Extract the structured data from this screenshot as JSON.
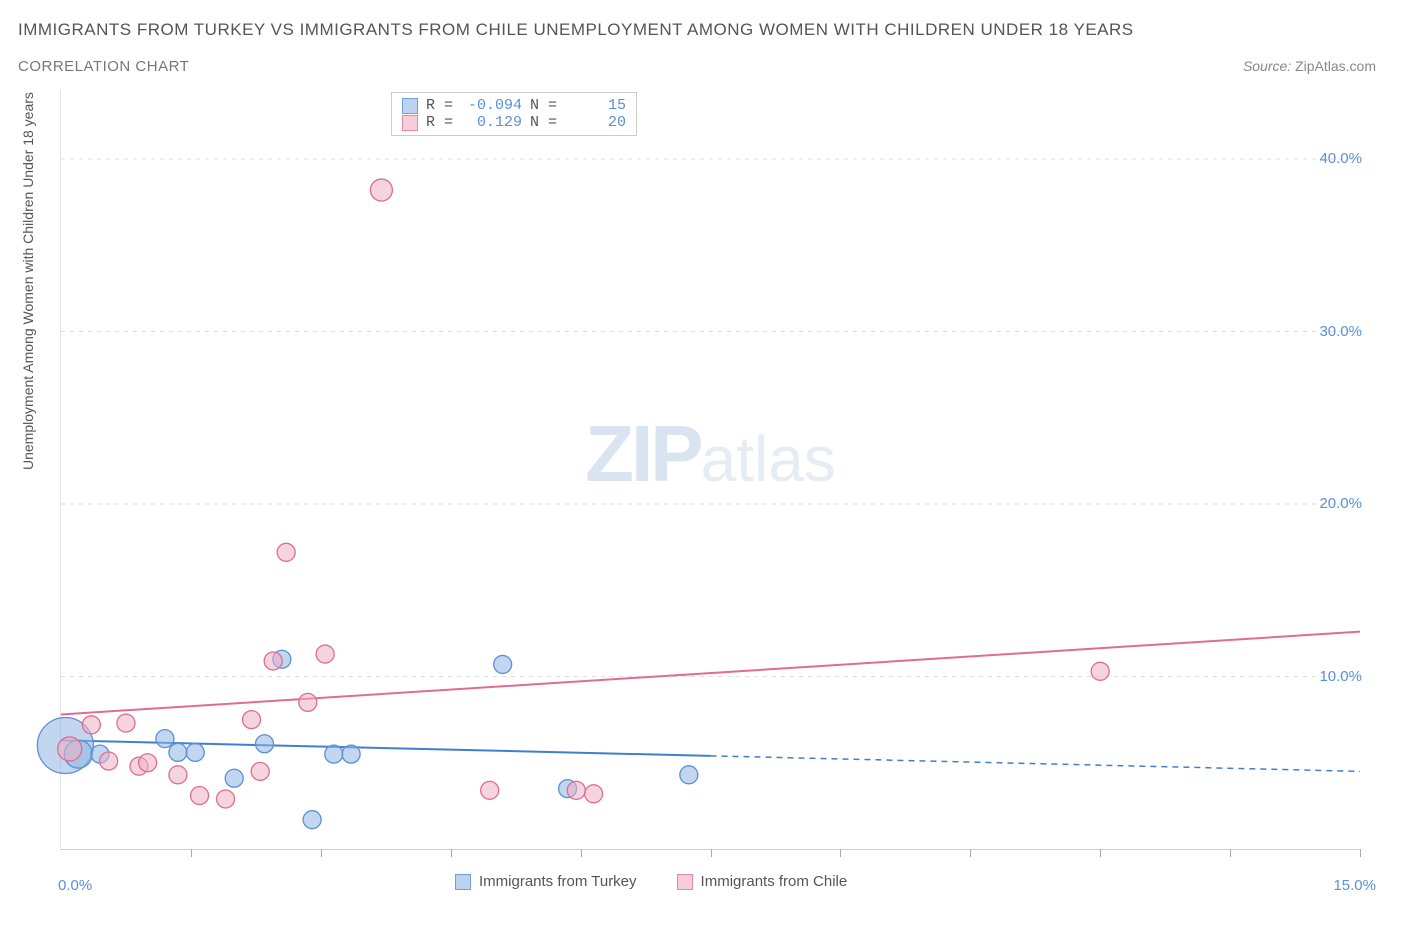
{
  "title": "IMMIGRANTS FROM TURKEY VS IMMIGRANTS FROM CHILE UNEMPLOYMENT AMONG WOMEN WITH CHILDREN UNDER 18 YEARS",
  "subtitle": "CORRELATION CHART",
  "source_prefix": "Source: ",
  "source": "ZipAtlas.com",
  "y_axis_label": "Unemployment Among Women with Children Under 18 years",
  "watermark": {
    "left": "ZIP",
    "right": "atlas"
  },
  "chart": {
    "type": "scatter",
    "background_color": "#ffffff",
    "grid_color": "#dddddd",
    "xlim": [
      0.0,
      15.0
    ],
    "ylim": [
      0.0,
      44.0
    ],
    "x_ticks_minor": [
      1.5,
      3.0,
      4.5,
      6.0,
      7.5,
      9.0,
      10.5,
      12.0,
      13.5,
      15.0
    ],
    "y_grid": [
      10.0,
      20.0,
      30.0,
      40.0
    ],
    "x_tick_labels": {
      "min": "0.0%",
      "max": "15.0%"
    },
    "y_tick_labels": [
      "10.0%",
      "20.0%",
      "30.0%",
      "40.0%"
    ],
    "legend_top": [
      {
        "swatch_fill": "#bcd3ef",
        "swatch_stroke": "#6fa0dc",
        "r_label": "R =",
        "r_value": "-0.094",
        "n_label": "N =",
        "n_value": "15"
      },
      {
        "swatch_fill": "#f6cdd9",
        "swatch_stroke": "#e48aa6",
        "r_label": "R =",
        "r_value": "0.129",
        "n_label": "N =",
        "n_value": "20"
      }
    ],
    "legend_bottom": [
      {
        "swatch_fill": "#bcd3ef",
        "swatch_stroke": "#6fa0dc",
        "label": "Immigrants from Turkey"
      },
      {
        "swatch_fill": "#f6cdd9",
        "swatch_stroke": "#e48aa6",
        "label": "Immigrants from Chile"
      }
    ],
    "series": [
      {
        "name": "Immigrants from Turkey",
        "point_fill": "rgba(143,181,225,0.55)",
        "point_stroke": "#5b8fd6",
        "marker_radius": 9,
        "trend": {
          "x1": 0.0,
          "y1": 6.3,
          "x2": 7.5,
          "y2": 5.4,
          "dash_x1": 7.5,
          "dash_y1": 5.4,
          "dash_x2": 15.0,
          "dash_y2": 4.5,
          "color": "#3f7ed0",
          "width": 2
        },
        "points": [
          {
            "x": 0.05,
            "y": 6.0,
            "r": 28
          },
          {
            "x": 0.2,
            "y": 5.5,
            "r": 14
          },
          {
            "x": 0.45,
            "y": 5.5,
            "r": 9
          },
          {
            "x": 1.2,
            "y": 6.4,
            "r": 9
          },
          {
            "x": 1.35,
            "y": 5.6,
            "r": 9
          },
          {
            "x": 1.55,
            "y": 5.6,
            "r": 9
          },
          {
            "x": 2.0,
            "y": 4.1,
            "r": 9
          },
          {
            "x": 2.35,
            "y": 6.1,
            "r": 9
          },
          {
            "x": 2.55,
            "y": 11.0,
            "r": 9
          },
          {
            "x": 2.9,
            "y": 1.7,
            "r": 9
          },
          {
            "x": 3.15,
            "y": 5.5,
            "r": 9
          },
          {
            "x": 3.35,
            "y": 5.5,
            "r": 9
          },
          {
            "x": 5.1,
            "y": 10.7,
            "r": 9
          },
          {
            "x": 5.85,
            "y": 3.5,
            "r": 9
          },
          {
            "x": 7.25,
            "y": 4.3,
            "r": 9
          }
        ]
      },
      {
        "name": "Immigrants from Chile",
        "point_fill": "rgba(238,176,195,0.55)",
        "point_stroke": "#e06c91",
        "marker_radius": 9,
        "trend": {
          "x1": 0.0,
          "y1": 7.8,
          "x2": 15.0,
          "y2": 12.6,
          "color": "#e06c91",
          "width": 2
        },
        "points": [
          {
            "x": 0.1,
            "y": 5.8,
            "r": 12
          },
          {
            "x": 0.35,
            "y": 7.2,
            "r": 9
          },
          {
            "x": 0.55,
            "y": 5.1,
            "r": 9
          },
          {
            "x": 0.75,
            "y": 7.3,
            "r": 9
          },
          {
            "x": 0.9,
            "y": 4.8,
            "r": 9
          },
          {
            "x": 1.0,
            "y": 5.0,
            "r": 9
          },
          {
            "x": 1.35,
            "y": 4.3,
            "r": 9
          },
          {
            "x": 1.6,
            "y": 3.1,
            "r": 9
          },
          {
            "x": 1.9,
            "y": 2.9,
            "r": 9
          },
          {
            "x": 2.2,
            "y": 7.5,
            "r": 9
          },
          {
            "x": 2.3,
            "y": 4.5,
            "r": 9
          },
          {
            "x": 2.45,
            "y": 10.9,
            "r": 9
          },
          {
            "x": 2.6,
            "y": 17.2,
            "r": 9
          },
          {
            "x": 2.85,
            "y": 8.5,
            "r": 9
          },
          {
            "x": 3.05,
            "y": 11.3,
            "r": 9
          },
          {
            "x": 3.7,
            "y": 38.2,
            "r": 11
          },
          {
            "x": 4.95,
            "y": 3.4,
            "r": 9
          },
          {
            "x": 5.95,
            "y": 3.4,
            "r": 9
          },
          {
            "x": 6.15,
            "y": 3.2,
            "r": 9
          },
          {
            "x": 12.0,
            "y": 10.3,
            "r": 9
          }
        ]
      }
    ]
  }
}
